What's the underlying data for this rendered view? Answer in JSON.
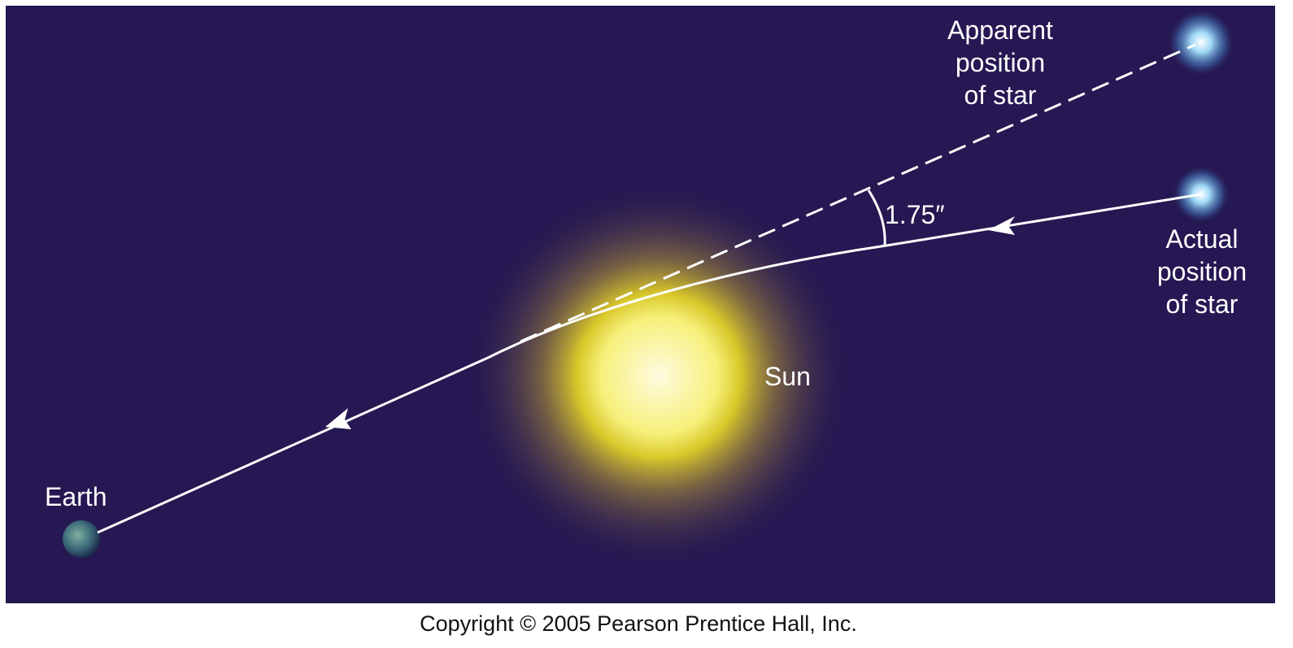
{
  "apparent_star": {
    "lines": [
      "Apparent",
      "position",
      "of star"
    ]
  },
  "actual_star": {
    "lines": [
      "Actual",
      "position",
      "of star"
    ]
  },
  "angle": "1.75″",
  "sun": "Sun",
  "earth": "Earth",
  "copyright": "Copyright © 2005 Pearson Prentice Hall, Inc."
}
